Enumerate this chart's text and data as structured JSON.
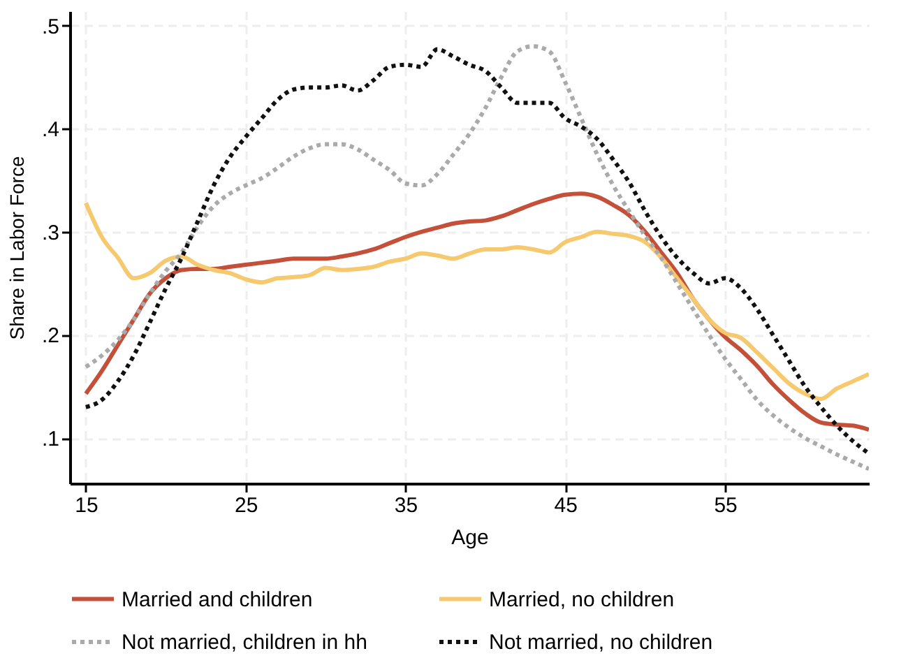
{
  "chart_data": {
    "type": "line",
    "xlabel": "Age",
    "ylabel": "Share in Labor Force",
    "x": [
      15,
      16,
      17,
      18,
      19,
      20,
      21,
      22,
      23,
      24,
      25,
      26,
      27,
      28,
      29,
      30,
      31,
      32,
      33,
      34,
      35,
      36,
      37,
      38,
      39,
      40,
      41,
      42,
      43,
      44,
      45,
      46,
      47,
      48,
      49,
      50,
      51,
      52,
      53,
      54,
      55,
      56,
      57,
      58,
      59,
      60,
      61,
      62,
      63,
      64
    ],
    "xlim": [
      14,
      64
    ],
    "xticks": [
      15,
      25,
      35,
      45,
      55
    ],
    "ylim": [
      0.056,
      0.514
    ],
    "yticks": [
      {
        "value": 0.1,
        "label": ".1"
      },
      {
        "value": 0.2,
        "label": ".2"
      },
      {
        "value": 0.3,
        "label": ".3"
      },
      {
        "value": 0.4,
        "label": ".4"
      },
      {
        "value": 0.5,
        "label": ".5"
      }
    ],
    "grid": true,
    "legend": "bottom",
    "series": [
      {
        "name": "Married and children",
        "color": "#c4503a",
        "line_style": "solid",
        "values": [
          0.143,
          0.165,
          0.19,
          0.215,
          0.24,
          0.255,
          0.263,
          0.264,
          0.264,
          0.266,
          0.268,
          0.27,
          0.272,
          0.274,
          0.274,
          0.274,
          0.276,
          0.279,
          0.283,
          0.289,
          0.295,
          0.3,
          0.304,
          0.308,
          0.31,
          0.311,
          0.315,
          0.321,
          0.327,
          0.332,
          0.336,
          0.337,
          0.334,
          0.326,
          0.316,
          0.3,
          0.28,
          0.26,
          0.235,
          0.215,
          0.198,
          0.185,
          0.17,
          0.152,
          0.137,
          0.124,
          0.115,
          0.113,
          0.112,
          0.108
        ]
      },
      {
        "name": "Married, no children",
        "color": "#f7c96e",
        "line_style": "solid",
        "values": [
          0.328,
          0.295,
          0.275,
          0.255,
          0.26,
          0.272,
          0.276,
          0.268,
          0.263,
          0.26,
          0.254,
          0.251,
          0.255,
          0.256,
          0.258,
          0.265,
          0.263,
          0.264,
          0.266,
          0.271,
          0.274,
          0.279,
          0.277,
          0.274,
          0.279,
          0.283,
          0.283,
          0.285,
          0.283,
          0.28,
          0.29,
          0.295,
          0.3,
          0.298,
          0.296,
          0.29,
          0.275,
          0.255,
          0.235,
          0.215,
          0.202,
          0.197,
          0.183,
          0.168,
          0.153,
          0.143,
          0.138,
          0.148,
          0.155,
          0.162
        ]
      },
      {
        "name": "Not married, children in hh",
        "color": "#aaaaaa",
        "line_style": "dotted",
        "values": [
          0.169,
          0.18,
          0.195,
          0.215,
          0.24,
          0.262,
          0.28,
          0.305,
          0.325,
          0.337,
          0.345,
          0.352,
          0.362,
          0.373,
          0.381,
          0.385,
          0.385,
          0.38,
          0.37,
          0.36,
          0.347,
          0.345,
          0.356,
          0.375,
          0.395,
          0.42,
          0.45,
          0.475,
          0.48,
          0.475,
          0.445,
          0.41,
          0.375,
          0.345,
          0.32,
          0.296,
          0.275,
          0.25,
          0.225,
          0.2,
          0.177,
          0.157,
          0.137,
          0.122,
          0.11,
          0.1,
          0.092,
          0.084,
          0.077,
          0.07
        ]
      },
      {
        "name": "Not married, no children",
        "color": "#111111",
        "line_style": "dotted",
        "values": [
          0.13,
          0.137,
          0.155,
          0.18,
          0.212,
          0.245,
          0.275,
          0.31,
          0.345,
          0.372,
          0.392,
          0.41,
          0.428,
          0.438,
          0.44,
          0.44,
          0.442,
          0.437,
          0.447,
          0.46,
          0.462,
          0.46,
          0.477,
          0.47,
          0.462,
          0.456,
          0.44,
          0.425,
          0.425,
          0.425,
          0.41,
          0.402,
          0.39,
          0.37,
          0.348,
          0.32,
          0.295,
          0.275,
          0.26,
          0.25,
          0.255,
          0.245,
          0.225,
          0.2,
          0.175,
          0.15,
          0.13,
          0.112,
          0.097,
          0.085
        ]
      }
    ]
  }
}
